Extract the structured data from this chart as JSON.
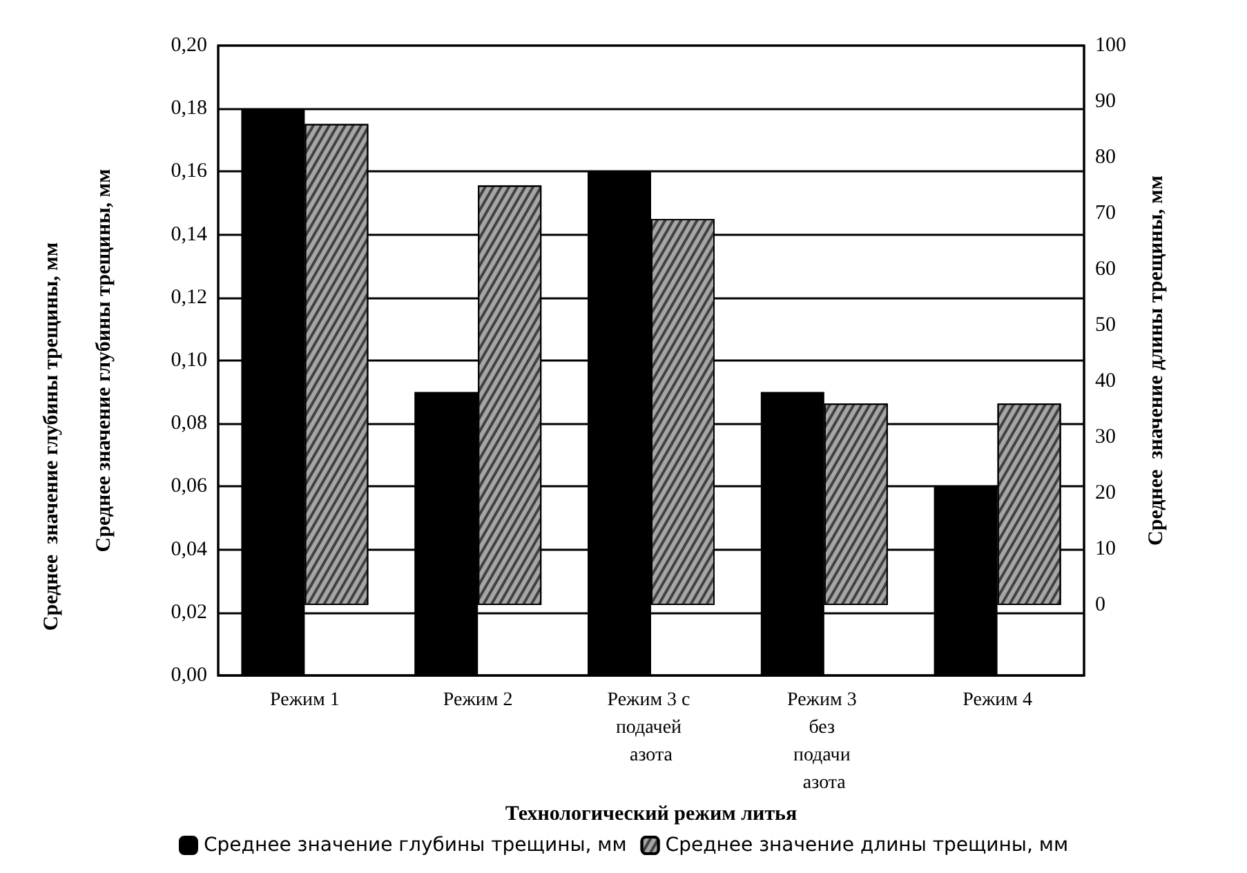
{
  "chart_data": {
    "type": "bar",
    "xlabel": "Технологический режим литья",
    "ylabel": "Среднее значение глубины трещины, мм",
    "y2label": "Среднее  значение длины трещины, мм",
    "annotations": [
      "Среднее  значение глубины трещины, мм"
    ],
    "categories": [
      "Режим 1",
      "Режим 2",
      "Режим 3 с подачей азота",
      "Режим 3 без подачи азота",
      "Режим 4"
    ],
    "series": [
      {
        "name": "Среднее значение глубины трещины, мм",
        "color": "#000000",
        "values": [
          0.18,
          0.09,
          0.16,
          0.09,
          0.06
        ]
      },
      {
        "name": "Среднее значение длины трещины, мм",
        "color": "#a6a6a6",
        "axis": "y2",
        "values": [
          86,
          75,
          69,
          36,
          36
        ]
      }
    ],
    "ylim": [
      0,
      0.2
    ],
    "yticks": [
      {
        "value": 0,
        "label": "0,00"
      },
      {
        "value": 0.02,
        "label": "0,02"
      },
      {
        "value": 0.04,
        "label": "0,04"
      },
      {
        "value": 0.06,
        "label": "0,06"
      },
      {
        "value": 0.08,
        "label": "0,08"
      },
      {
        "value": 0.1,
        "label": "0,10"
      },
      {
        "value": 0.12,
        "label": "0,12"
      },
      {
        "value": 0.14,
        "label": "0,14"
      },
      {
        "value": 0.16,
        "label": "0,16"
      },
      {
        "value": 0.18,
        "label": "0,18"
      },
      {
        "value": 0.2,
        "label": "0,20"
      }
    ],
    "y2lim": [
      -12.6,
      100
    ],
    "y2ticks": [
      0,
      10,
      20,
      30,
      40,
      50,
      60,
      70,
      80,
      90,
      100
    ],
    "grid": "y",
    "legend": "bottom"
  }
}
